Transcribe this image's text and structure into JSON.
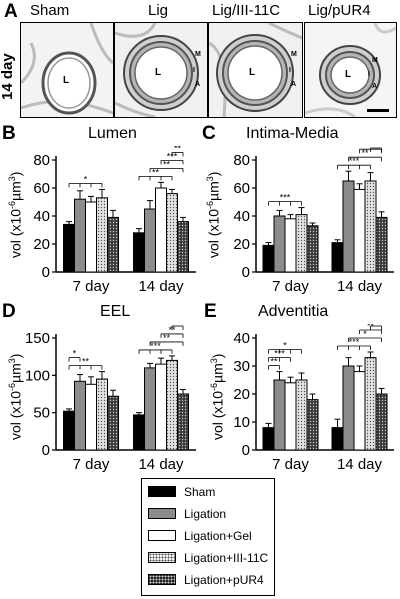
{
  "images": {
    "panel_label": "A",
    "row_label": "14 day",
    "columns": [
      {
        "title": "Sham",
        "lumen_label": "L",
        "layer_labels": []
      },
      {
        "title": "Lig",
        "lumen_label": "L",
        "layer_labels": [
          "M",
          "I",
          "A"
        ]
      },
      {
        "title": "Lig/III-11C",
        "lumen_label": "L",
        "layer_labels": [
          "M",
          "I",
          "A"
        ]
      },
      {
        "title": "Lig/pUR4",
        "lumen_label": "L",
        "layer_labels": [
          "M",
          "I",
          "A"
        ]
      }
    ]
  },
  "y_unit_label": "vol (x10",
  "y_unit_exp": "-6",
  "y_unit_tail": "µm",
  "y_unit_exp2": "3",
  "y_unit_close": ")",
  "legend": {
    "entries": [
      {
        "label": "Sham",
        "pattern": "solid-black"
      },
      {
        "label": "Ligation",
        "pattern": "solid-gray"
      },
      {
        "label": "Ligation+Gel",
        "pattern": "white"
      },
      {
        "label": "Ligation+III-11C",
        "pattern": "dotted-light"
      },
      {
        "label": "Ligation+pUR4",
        "pattern": "dotted-dark"
      }
    ]
  },
  "colors": {
    "sham": "#000000",
    "ligation": "#8c8c8c",
    "gel": "#ffffff",
    "iii11c": "#e4e4e4",
    "pur4": "#3a3a3a"
  },
  "chart_data": [
    {
      "type": "bar",
      "panel_label": "B",
      "title": "Lumen",
      "categories": [
        "7 day",
        "14 day"
      ],
      "ylim": [
        0,
        80
      ],
      "yticks": [
        0,
        20,
        40,
        60,
        80
      ],
      "series": [
        {
          "name": "Sham",
          "values": [
            34,
            28
          ],
          "errors": [
            2,
            3
          ]
        },
        {
          "name": "Ligation",
          "values": [
            52,
            45
          ],
          "errors": [
            6,
            6
          ]
        },
        {
          "name": "Ligation+Gel",
          "values": [
            50,
            60
          ],
          "errors": [
            4,
            4
          ]
        },
        {
          "name": "Ligation+III-11C",
          "values": [
            53,
            56
          ],
          "errors": [
            6,
            3
          ]
        },
        {
          "name": "Ligation+pUR4",
          "values": [
            39,
            36
          ],
          "errors": [
            5,
            3
          ]
        }
      ],
      "significance": [
        {
          "group": 0,
          "from": 0,
          "to": [
            1,
            2,
            3
          ],
          "label": "*"
        },
        {
          "group": 1,
          "from": 0,
          "to": [
            1,
            2,
            3
          ],
          "label": "**"
        },
        {
          "group": 1,
          "from": 1,
          "to": [
            4
          ],
          "label": "**"
        },
        {
          "group": 1,
          "from": 2,
          "to": [
            4
          ],
          "label": "***"
        },
        {
          "group": 1,
          "from": 3,
          "to": [
            4
          ],
          "label": "**"
        }
      ]
    },
    {
      "type": "bar",
      "panel_label": "C",
      "title": "Intima-Media",
      "categories": [
        "7 day",
        "14 day"
      ],
      "ylim": [
        0,
        80
      ],
      "yticks": [
        0,
        20,
        40,
        60,
        80
      ],
      "series": [
        {
          "name": "Sham",
          "values": [
            19,
            21
          ],
          "errors": [
            2,
            2
          ]
        },
        {
          "name": "Ligation",
          "values": [
            40,
            65
          ],
          "errors": [
            4,
            7
          ]
        },
        {
          "name": "Ligation+Gel",
          "values": [
            38,
            59
          ],
          "errors": [
            3,
            4
          ]
        },
        {
          "name": "Ligation+III-11C",
          "values": [
            41,
            65
          ],
          "errors": [
            5,
            6
          ]
        },
        {
          "name": "Ligation+pUR4",
          "values": [
            33,
            39
          ],
          "errors": [
            2,
            4
          ]
        }
      ],
      "significance": [
        {
          "group": 0,
          "from": 0,
          "to": [
            1,
            2,
            3
          ],
          "label": "***"
        },
        {
          "group": 1,
          "from": 0,
          "to": [
            1,
            2,
            3
          ],
          "label": "***"
        },
        {
          "group": 1,
          "from": 1,
          "to": [
            4
          ],
          "label": "**"
        },
        {
          "group": 1,
          "from": 2,
          "to": [
            4
          ],
          "label": "**"
        },
        {
          "group": 1,
          "from": 3,
          "to": [
            4
          ],
          "label": "*"
        }
      ]
    },
    {
      "type": "bar",
      "panel_label": "D",
      "title": "EEL",
      "categories": [
        "7 day",
        "14 day"
      ],
      "ylim": [
        0,
        150
      ],
      "yticks": [
        0,
        50,
        100,
        150
      ],
      "series": [
        {
          "name": "Sham",
          "values": [
            52,
            47
          ],
          "errors": [
            3,
            3
          ]
        },
        {
          "name": "Ligation",
          "values": [
            92,
            110
          ],
          "errors": [
            9,
            6
          ]
        },
        {
          "name": "Ligation+Gel",
          "values": [
            88,
            115
          ],
          "errors": [
            10,
            8
          ]
        },
        {
          "name": "Ligation+III-11C",
          "values": [
            95,
            120
          ],
          "errors": [
            10,
            6
          ]
        },
        {
          "name": "Ligation+pUR4",
          "values": [
            72,
            75
          ],
          "errors": [
            8,
            6
          ]
        }
      ],
      "significance": [
        {
          "group": 0,
          "from": 0,
          "to": [
            1,
            2,
            3
          ],
          "label": "**"
        },
        {
          "group": 0,
          "from": 0,
          "to": [
            1
          ],
          "label": "*"
        },
        {
          "group": 1,
          "from": 0,
          "to": [
            1,
            2,
            3
          ],
          "label": "***"
        },
        {
          "group": 1,
          "from": 1,
          "to": [
            4
          ],
          "label": "**"
        },
        {
          "group": 1,
          "from": 2,
          "to": [
            4
          ],
          "label": "**"
        },
        {
          "group": 1,
          "from": 3,
          "to": [
            4
          ],
          "label": "**"
        }
      ]
    },
    {
      "type": "bar",
      "panel_label": "E",
      "title": "Adventitia",
      "categories": [
        "7 day",
        "14 day"
      ],
      "ylim": [
        0,
        40
      ],
      "yticks": [
        0,
        10,
        20,
        30,
        40
      ],
      "series": [
        {
          "name": "Sham",
          "values": [
            8,
            8
          ],
          "errors": [
            1.5,
            3
          ]
        },
        {
          "name": "Ligation",
          "values": [
            25,
            30
          ],
          "errors": [
            3,
            3
          ]
        },
        {
          "name": "Ligation+Gel",
          "values": [
            24,
            28
          ],
          "errors": [
            2,
            2
          ]
        },
        {
          "name": "Ligation+III-11C",
          "values": [
            25,
            33
          ],
          "errors": [
            2.5,
            2
          ]
        },
        {
          "name": "Ligation+pUR4",
          "values": [
            18,
            20
          ],
          "errors": [
            2,
            2
          ]
        }
      ],
      "significance": [
        {
          "group": 0,
          "from": 0,
          "to": [
            1
          ],
          "label": "**"
        },
        {
          "group": 0,
          "from": 0,
          "to": [
            1,
            2
          ],
          "label": "***"
        },
        {
          "group": 0,
          "from": 0,
          "to": [
            1,
            2,
            3
          ],
          "label": "*"
        },
        {
          "group": 1,
          "from": 0,
          "to": [
            1,
            2,
            3
          ],
          "label": "***"
        },
        {
          "group": 1,
          "from": 1,
          "to": [
            4
          ],
          "label": "*"
        },
        {
          "group": 1,
          "from": 2,
          "to": [
            4
          ],
          "label": "**"
        },
        {
          "group": 1,
          "from": 3,
          "to": [
            4
          ],
          "label": "***"
        }
      ]
    }
  ]
}
